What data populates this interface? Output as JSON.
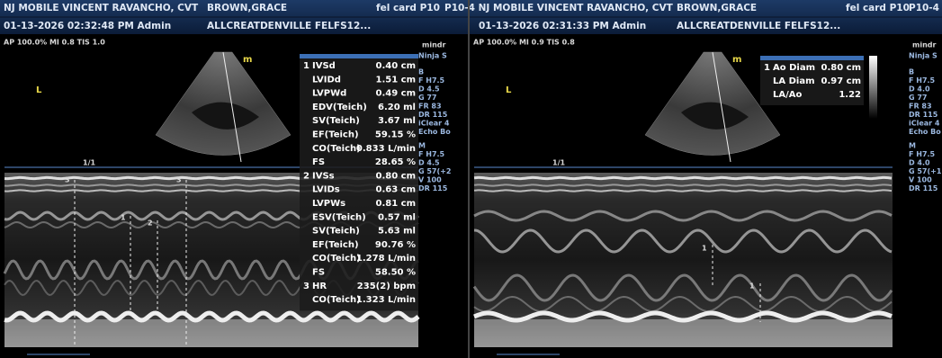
{
  "left": {
    "header": {
      "site": "NJ MOBILE VINCENT RAVANCHO, CVT",
      "patient": "BROWN,GRACE",
      "exam": "fel card P10",
      "datetime": "01-13-2026  02:32:48 PM   Admin",
      "institution": "ALLCREATDENVILLE FELFS12..."
    },
    "acoustic": "AP 100.0%  MI 0.8  TIS 1.0",
    "orientation": "L",
    "probe_marker": "m",
    "mmode_label": "1/1",
    "brand": "mindr",
    "model": "Ninja S",
    "params": [
      "B",
      "F H7.5",
      "D 4.5",
      "G 77",
      "FR 83",
      "DR 115",
      "iClear 4",
      "Echo Bo",
      "M",
      "F H7.5",
      "D 4.5",
      "G 57(+2",
      "V 100",
      "DR 115"
    ],
    "cursor_labels": [
      "3",
      "3",
      "1",
      "2"
    ],
    "measurements": [
      {
        "group": "1",
        "name": "IVSd",
        "value": "0.40 cm"
      },
      {
        "name": "LVIDd",
        "value": "1.51 cm"
      },
      {
        "name": "LVPWd",
        "value": "0.49 cm"
      },
      {
        "name": "EDV(Teich)",
        "value": "6.20 ml"
      },
      {
        "name": "SV(Teich)",
        "value": "3.67 ml"
      },
      {
        "name": "EF(Teich)",
        "value": "59.15 %"
      },
      {
        "name": "CO(Teich)",
        "value": "0.833 L/min"
      },
      {
        "name": "FS",
        "value": "28.65 %"
      },
      {
        "group": "2",
        "name": "IVSs",
        "value": "0.80 cm"
      },
      {
        "name": "LVIDs",
        "value": "0.63 cm"
      },
      {
        "name": "LVPWs",
        "value": "0.81 cm"
      },
      {
        "name": "ESV(Teich)",
        "value": "0.57 ml"
      },
      {
        "name": "SV(Teich)",
        "value": "5.63 ml"
      },
      {
        "name": "EF(Teich)",
        "value": "90.76 %"
      },
      {
        "name": "CO(Teich)",
        "value": "1.278 L/min"
      },
      {
        "name": "FS",
        "value": "58.50 %"
      },
      {
        "group": "3",
        "name": "HR",
        "value": "235(2) bpm"
      },
      {
        "name": "CO(Teich)",
        "value": "1.323 L/min"
      }
    ]
  },
  "right": {
    "header": {
      "site": "P10-4 NJ MOBILE VINCENT RAVANCHO, CVT",
      "patient": "BROWN,GRACE",
      "exam": "fel card P10",
      "panel_id": "P10-4",
      "datetime": "01-13-2026  02:31:33 PM   Admin",
      "institution": "ALLCREATDENVILLE FELFS12..."
    },
    "acoustic": "AP 100.0%  MI 0.9  TIS 0.8",
    "orientation": "L",
    "probe_marker": "m",
    "mmode_label": "1/1",
    "brand": "mindr",
    "model": "Ninja S",
    "params": [
      "B",
      "F H7.5",
      "D 4.0",
      "G 77",
      "FR 83",
      "DR 115",
      "iClear 4",
      "Echo Bo",
      "M",
      "F H7.5",
      "D 4.0",
      "G 57(+1",
      "V 100",
      "DR 115"
    ],
    "cursor_labels": [
      "1",
      "1"
    ],
    "measurements": [
      {
        "group": "1",
        "name": "Ao Diam",
        "value": "0.80 cm"
      },
      {
        "name": "LA Diam",
        "value": "0.97 cm"
      },
      {
        "name": "LA/Ao",
        "value": "1.22"
      }
    ]
  }
}
